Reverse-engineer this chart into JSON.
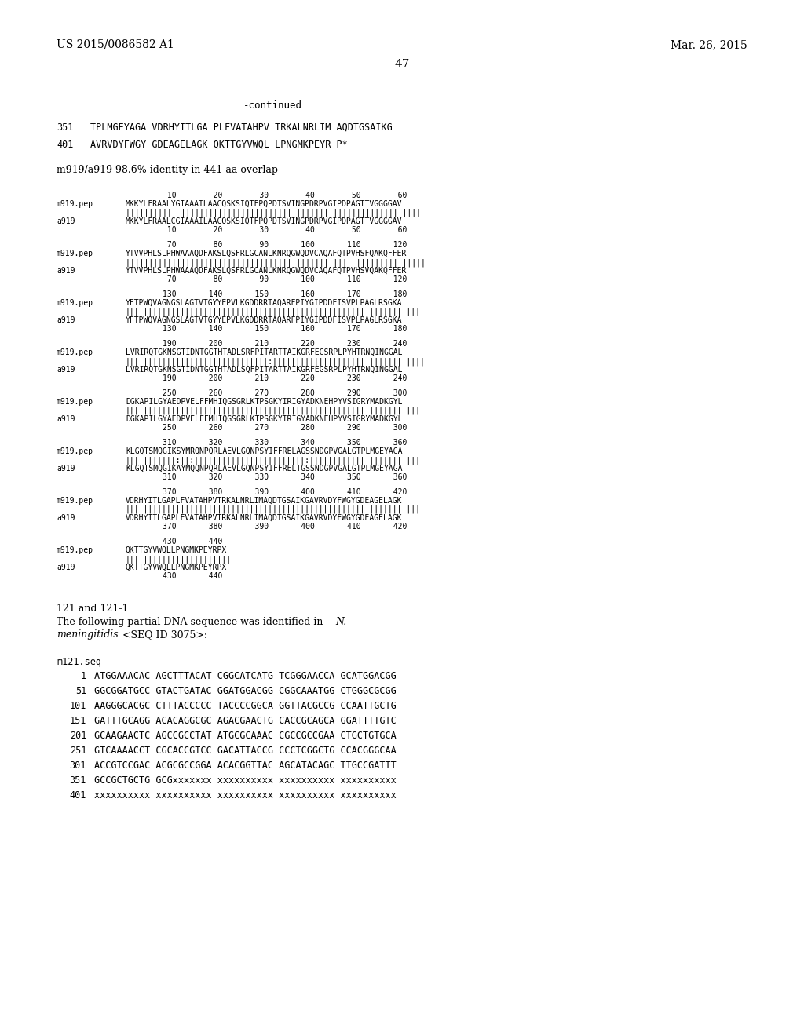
{
  "background_color": "#ffffff",
  "header_left": "US 2015/0086582 A1",
  "header_right": "Mar. 26, 2015",
  "page_number": "47"
}
